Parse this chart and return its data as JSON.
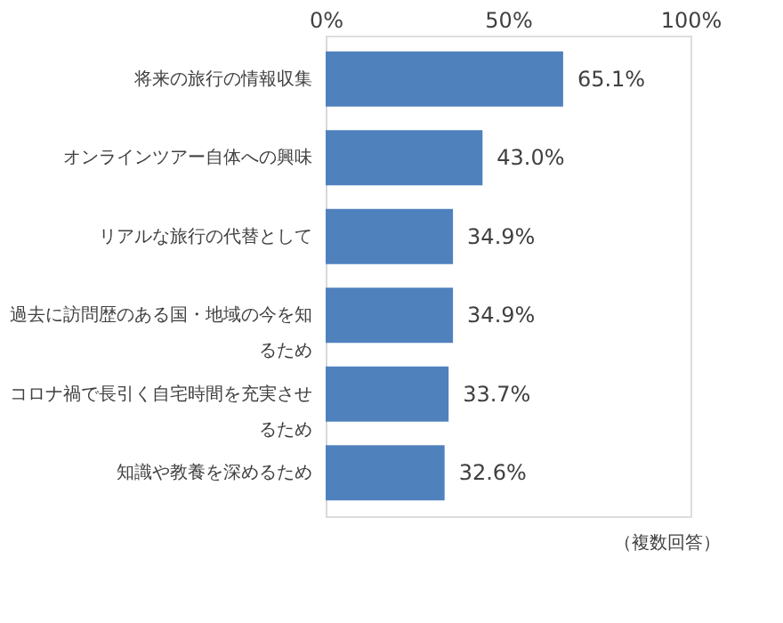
{
  "chart_data": {
    "type": "bar",
    "orientation": "horizontal",
    "categories": [
      "将来の旅行の情報収集",
      "オンラインツアー自体への興味",
      "リアルな旅行の代替として",
      "過去に訪問歴のある国・地域の今を知るため",
      "コロナ禍で長引く自宅時間を充実させるため",
      "知識や教養を深めるため"
    ],
    "values": [
      65.1,
      43.0,
      34.9,
      34.9,
      33.7,
      32.6
    ],
    "value_labels": [
      "65.1%",
      "43.0%",
      "34.9%",
      "34.9%",
      "33.7%",
      "32.6%"
    ],
    "color": "#4f81bd",
    "xlim": [
      0,
      100
    ],
    "xticks": [
      {
        "value": 0,
        "label": "0%"
      },
      {
        "value": 50,
        "label": "50%"
      },
      {
        "value": 100,
        "label": "100%"
      }
    ],
    "grid": false,
    "annotations": [
      "（複数回答）"
    ]
  }
}
